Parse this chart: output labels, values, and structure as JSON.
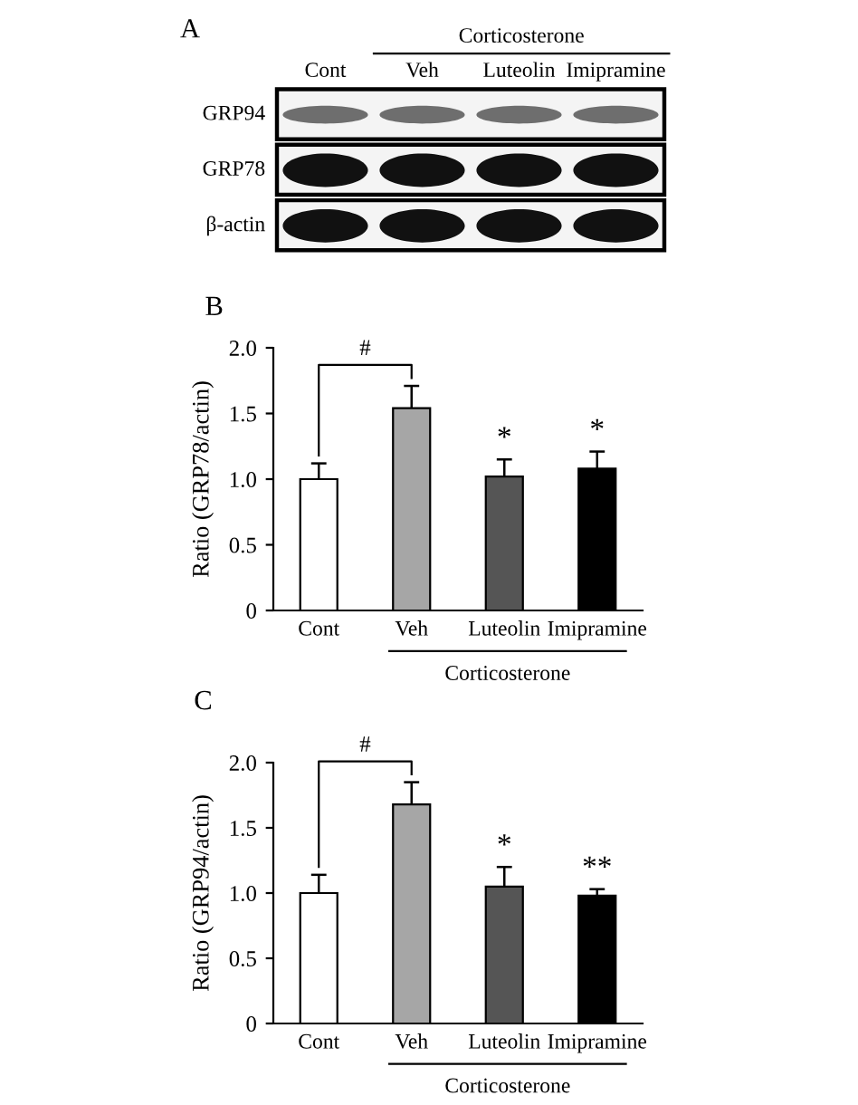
{
  "chart_data": [
    {
      "type": "other",
      "title": "A",
      "categories": [
        "Cont",
        "Veh",
        "Luteolin",
        "Imipramine"
      ],
      "y_categories": [
        "GRP94",
        "GRP78",
        "β-actin"
      ],
      "annotations": [
        "Corticosterone"
      ]
    },
    {
      "type": "bar",
      "title": "B",
      "ylabel": "Ratio (GRP78/actin)",
      "xlabel": "Corticosterone",
      "categories": [
        "Cont",
        "Veh",
        "Luteolin",
        "Imipramine"
      ],
      "values": [
        1.0,
        1.54,
        1.02,
        1.08
      ],
      "colors": [
        "#ffffff",
        "#a6a6a6",
        "#555555",
        "#000000"
      ],
      "errors": [
        [
          1.0,
          1.12
        ],
        [
          1.54,
          1.71
        ],
        [
          1.02,
          1.15
        ],
        [
          1.08,
          1.21
        ]
      ],
      "ylim": [
        0,
        2.0
      ],
      "yticks": [
        0,
        {
          "value": 0.5,
          "label": "0.5"
        },
        {
          "value": 1.0,
          "label": "1.0"
        },
        {
          "value": 1.5,
          "label": "1.5"
        },
        {
          "value": 2.0,
          "label": "2.0"
        }
      ],
      "annotations": [
        "#",
        {
          "text": "*",
          "x": "Luteolin",
          "y": 1.15
        },
        {
          "text": "*",
          "x": "Imipramine",
          "y": 1.21
        }
      ]
    },
    {
      "type": "bar",
      "title": "C",
      "ylabel": "Ratio (GRP94/actin)",
      "xlabel": "Corticosterone",
      "categories": [
        "Cont",
        "Veh",
        "Luteolin",
        "Imipramine"
      ],
      "values": [
        1.0,
        1.68,
        1.05,
        0.98
      ],
      "colors": [
        "#ffffff",
        "#a6a6a6",
        "#555555",
        "#000000"
      ],
      "errors": [
        [
          1.0,
          1.14
        ],
        [
          1.68,
          1.85
        ],
        [
          1.05,
          1.2
        ],
        [
          0.98,
          1.03
        ]
      ],
      "ylim": [
        0,
        2.0
      ],
      "yticks": [
        0,
        {
          "value": 0.5,
          "label": "0.5"
        },
        {
          "value": 1.0,
          "label": "1.0"
        },
        {
          "value": 1.5,
          "label": "1.5"
        },
        {
          "value": 2.0,
          "label": "2.0"
        }
      ],
      "annotations": [
        "#",
        {
          "text": "*",
          "x": "Luteolin",
          "y": 1.2
        },
        {
          "text": "**",
          "x": "Imipramine",
          "y": 1.03
        }
      ]
    }
  ]
}
